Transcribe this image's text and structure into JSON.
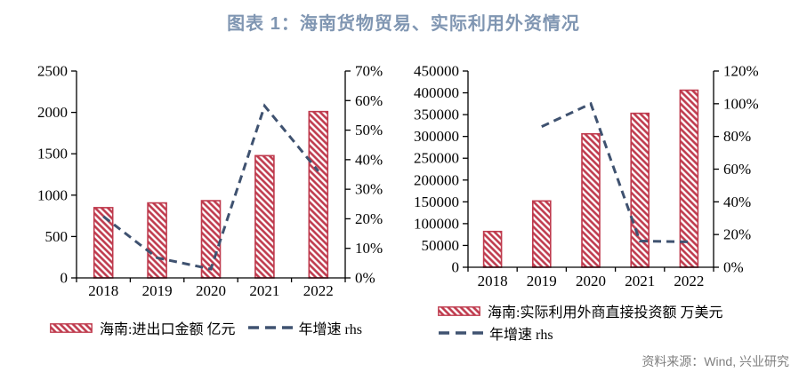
{
  "title": "图表 1：海南货物贸易、实际利用外资情况",
  "source": "资料来源：Wind, 兴业研究",
  "colors": {
    "bar": "#BF3A4D",
    "line": "#3F5270",
    "title": "#8096B2",
    "source": "#7F7F7F",
    "axis": "#000000"
  },
  "chart_data": [
    {
      "type": "bar",
      "subtype": "bar+line-dual-axis",
      "categories": [
        "2018",
        "2019",
        "2020",
        "2021",
        "2022"
      ],
      "series": [
        {
          "name": "海南:进出口金额  亿元",
          "type": "bar",
          "axis": "left",
          "values": [
            849,
            906,
            933,
            1477,
            2010
          ]
        },
        {
          "name": "年增速  rhs",
          "type": "line",
          "style": "dashed",
          "axis": "right",
          "values": [
            20.8,
            6.8,
            3.0,
            58.2,
            36.1
          ]
        }
      ],
      "left_axis": {
        "min": 0,
        "max": 2500,
        "step": 500,
        "suffix": ""
      },
      "right_axis": {
        "min": 0,
        "max": 70,
        "step": 10,
        "suffix": "%"
      },
      "grid": false,
      "legend_position": "bottom"
    },
    {
      "type": "bar",
      "subtype": "bar+line-dual-axis",
      "categories": [
        "2018",
        "2019",
        "2020",
        "2021",
        "2022"
      ],
      "series": [
        {
          "name": "海南:实际利用外商直接投资额  万美元",
          "type": "bar",
          "axis": "left",
          "values": [
            82000,
            152000,
            306000,
            353000,
            406000
          ]
        },
        {
          "name": "年增速  rhs",
          "type": "line",
          "style": "dashed",
          "axis": "right",
          "values": [
            null,
            86,
            100,
            16,
            15.5
          ]
        }
      ],
      "left_axis": {
        "min": 0,
        "max": 450000,
        "step": 50000,
        "suffix": ""
      },
      "right_axis": {
        "min": 0,
        "max": 120,
        "step": 20,
        "suffix": "%"
      },
      "grid": false,
      "legend_position": "bottom"
    }
  ]
}
